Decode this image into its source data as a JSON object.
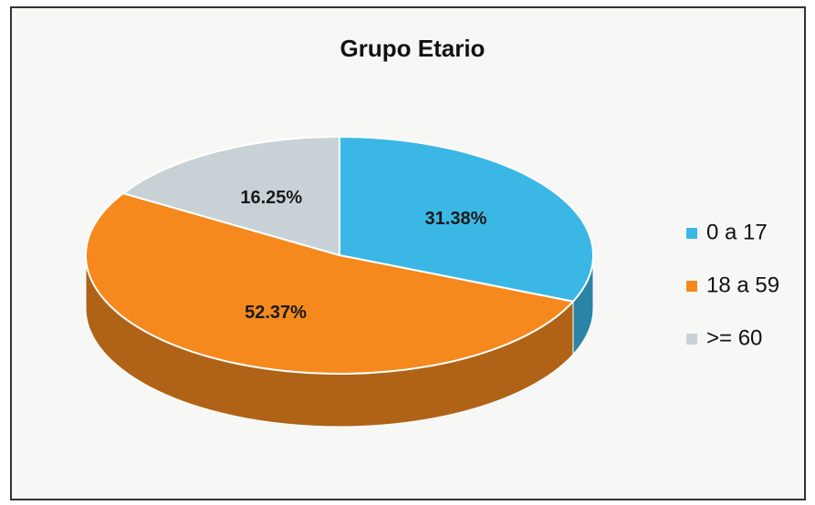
{
  "chart_data": {
    "type": "pie",
    "title": "Grupo Etario",
    "categories": [
      "0 a 17",
      "18 a 59",
      ">= 60"
    ],
    "values": [
      31.38,
      52.37,
      16.25
    ],
    "value_labels": [
      "31.38%",
      "52.37%",
      "16.25%"
    ],
    "colors": [
      "#3bb7e6",
      "#f5891e",
      "#c8d2d6"
    ],
    "legend": "right"
  }
}
